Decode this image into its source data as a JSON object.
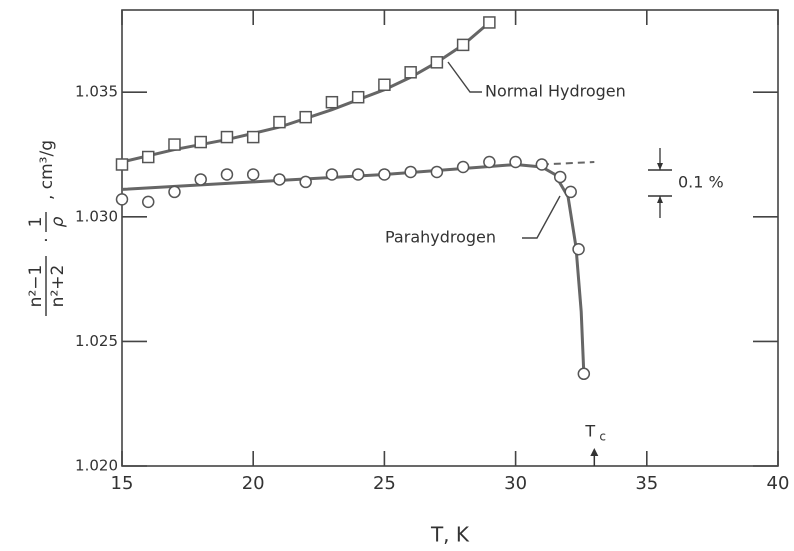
{
  "chart_data": {
    "type": "scatter",
    "x_label": "T,  K",
    "y_label": {
      "numerator": "n²−1",
      "denominator": "n²+2",
      "dot": "·",
      "inv_num": "1",
      "inv_den": "ρ",
      "unit": ", cm³/g"
    },
    "xlim": [
      15,
      40
    ],
    "ylim": [
      1.02,
      1.0383
    ],
    "xticks": [
      15,
      20,
      25,
      30,
      35,
      40
    ],
    "yticks": [
      {
        "value": 1.02,
        "label": "1.020"
      },
      {
        "value": 1.025,
        "label": "1.025"
      },
      {
        "value": 1.03,
        "label": "1.030"
      },
      {
        "value": 1.035,
        "label": "1.035"
      }
    ],
    "series": [
      {
        "name": "Normal Hydrogen",
        "marker": "square",
        "color": "#555555",
        "x": [
          15,
          16,
          17,
          18,
          19,
          20,
          21,
          22,
          23,
          24,
          25,
          26,
          27,
          28,
          29
        ],
        "values": [
          1.0321,
          1.0324,
          1.0329,
          1.033,
          1.0332,
          1.0332,
          1.0338,
          1.034,
          1.0346,
          1.0348,
          1.0353,
          1.0358,
          1.0362,
          1.0369,
          1.0378
        ]
      },
      {
        "name": "Parahydrogen",
        "marker": "circle",
        "color": "#555555",
        "x": [
          15,
          16,
          17,
          18,
          19,
          20,
          21,
          22,
          23,
          24,
          25,
          26,
          27,
          28,
          29,
          30,
          31,
          31.7,
          32.1,
          32.4,
          32.6
        ],
        "values": [
          1.0307,
          1.0306,
          1.031,
          1.0315,
          1.0317,
          1.0317,
          1.0315,
          1.0314,
          1.0317,
          1.0317,
          1.0317,
          1.0318,
          1.0318,
          1.032,
          1.0322,
          1.0322,
          1.0321,
          1.0316,
          1.031,
          1.0287,
          1.0237
        ]
      }
    ],
    "curves": [
      {
        "color": "#666666",
        "dashed": false,
        "x": [
          15,
          17,
          19,
          21,
          23,
          25,
          26,
          27,
          28,
          29
        ],
        "values": [
          1.0322,
          1.0327,
          1.0331,
          1.0336,
          1.0343,
          1.0351,
          1.0356,
          1.0362,
          1.0369,
          1.0378
        ]
      },
      {
        "color": "#666666",
        "dashed": false,
        "x": [
          15,
          20,
          25,
          30,
          31,
          31.5,
          32,
          32.3,
          32.5,
          32.6
        ],
        "values": [
          1.0311,
          1.0314,
          1.0317,
          1.0321,
          1.032,
          1.0317,
          1.0308,
          1.0288,
          1.0262,
          1.0237
        ]
      },
      {
        "color": "#666666",
        "dashed": true,
        "x": [
          31,
          33
        ],
        "values": [
          1.0321,
          1.0322
        ]
      }
    ],
    "annotations": {
      "tc": "T",
      "tc_sub": "c",
      "tc_x": 33,
      "percent": "0.1 %"
    }
  }
}
